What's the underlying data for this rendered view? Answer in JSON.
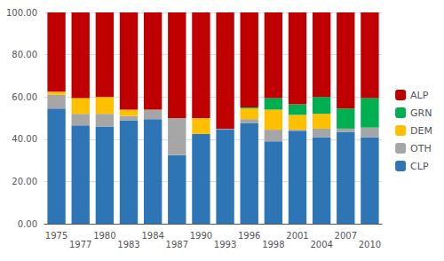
{
  "chart_data": {
    "type": "bar",
    "stacked": true,
    "categories": [
      "1975",
      "1977",
      "1980",
      "1983",
      "1984",
      "1987",
      "1990",
      "1993",
      "1996",
      "1998",
      "2001",
      "2004",
      "2007",
      "2010"
    ],
    "series": [
      {
        "name": "CLP",
        "color": "#2E75B6",
        "values": [
          54.5,
          46.5,
          46.0,
          49.0,
          49.5,
          32.5,
          42.5,
          44.5,
          47.5,
          39.0,
          44.0,
          41.0,
          43.5,
          41.0
        ]
      },
      {
        "name": "OTH",
        "color": "#A6A6A6",
        "values": [
          6.5,
          5.5,
          6.0,
          2.0,
          4.5,
          17.5,
          0.0,
          0.5,
          2.0,
          5.5,
          0.5,
          4.0,
          1.5,
          4.5
        ]
      },
      {
        "name": "DEM",
        "color": "#FFC000",
        "values": [
          1.5,
          7.5,
          8.0,
          3.0,
          0.0,
          0.0,
          7.5,
          0.0,
          5.0,
          9.5,
          7.0,
          7.0,
          0.0,
          0.0
        ]
      },
      {
        "name": "GRN",
        "color": "#00B050",
        "values": [
          0.0,
          0.0,
          0.0,
          0.0,
          0.0,
          0.0,
          0.0,
          0.0,
          0.5,
          5.5,
          5.0,
          8.0,
          9.5,
          14.0
        ]
      },
      {
        "name": "ALP",
        "color": "#C00000",
        "values": [
          37.5,
          40.5,
          40.0,
          46.0,
          46.0,
          50.0,
          50.0,
          55.0,
          45.0,
          40.5,
          43.5,
          40.0,
          45.5,
          40.5
        ]
      }
    ],
    "ylim": [
      0,
      100
    ],
    "yticks": [
      {
        "value": 0,
        "label": "0.00"
      },
      {
        "value": 20,
        "label": "20.00"
      },
      {
        "value": 40,
        "label": "40.00"
      },
      {
        "value": 60,
        "label": "60.00"
      },
      {
        "value": 80,
        "label": "80.00"
      },
      {
        "value": 100,
        "label": "100.00"
      }
    ],
    "grid": true,
    "legend": "right"
  }
}
